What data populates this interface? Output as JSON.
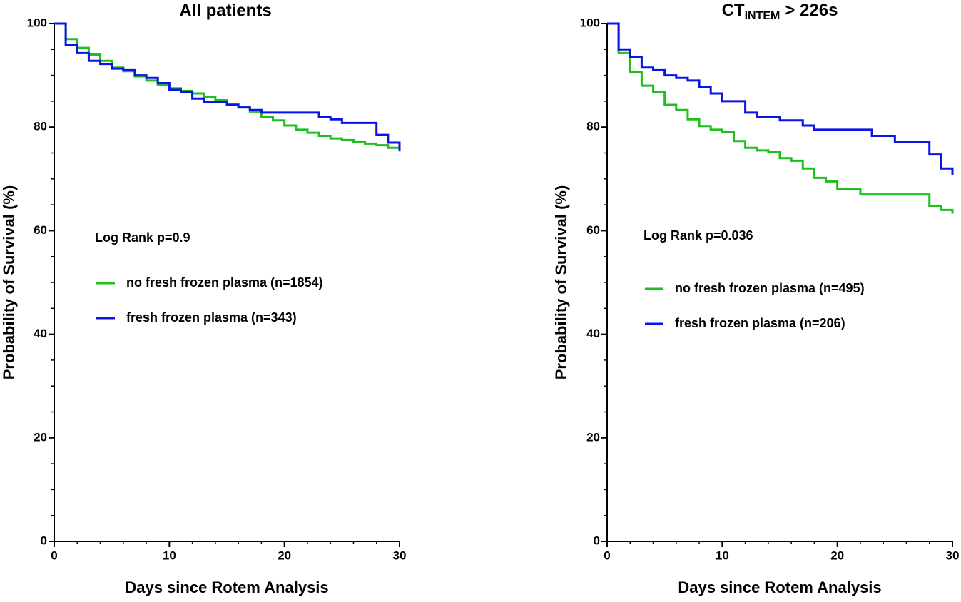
{
  "chart_data": [
    {
      "type": "step",
      "title": "All patients",
      "x_label": "Days since Rotem Analysis",
      "y_label": "Probability of Survival (%)",
      "annotation": "Log Rank p=0.9",
      "xlim": [
        0,
        30
      ],
      "xticks": [
        0,
        10,
        20,
        30
      ],
      "ylim": [
        0,
        100
      ],
      "yticks": [
        0,
        20,
        40,
        60,
        80,
        100
      ],
      "series": [
        {
          "name": "no fresh frozen plasma (n=1854)",
          "color": "#1fbf1f",
          "x": [
            0,
            1,
            2,
            3,
            4,
            5,
            6,
            7,
            8,
            9,
            10,
            11,
            12,
            13,
            14,
            15,
            16,
            17,
            18,
            19,
            20,
            21,
            22,
            23,
            24,
            25,
            26,
            27,
            28,
            29,
            30
          ],
          "values": [
            100,
            97,
            95.3,
            94,
            92.8,
            91.5,
            90.8,
            89.8,
            89,
            88.2,
            87.5,
            87,
            86.5,
            85.8,
            85.2,
            84.5,
            83.8,
            83,
            82,
            81.3,
            80.3,
            79.5,
            78.9,
            78.3,
            77.8,
            77.5,
            77.2,
            76.8,
            76.5,
            76,
            75.3
          ]
        },
        {
          "name": "fresh frozen plasma (n=343)",
          "color": "#0a14e6",
          "x": [
            0,
            1,
            2,
            3,
            4,
            5,
            6,
            7,
            8,
            9,
            10,
            11,
            12,
            13,
            15,
            16,
            17,
            18,
            23,
            24,
            25,
            28,
            29,
            30
          ],
          "values": [
            100,
            95.8,
            94.3,
            92.8,
            92.2,
            91.3,
            91,
            90,
            89.5,
            88.5,
            87.2,
            86.8,
            85.5,
            84.8,
            84.3,
            83.8,
            83.3,
            82.8,
            82,
            81.5,
            80.8,
            78.5,
            77,
            75.5
          ]
        }
      ]
    },
    {
      "type": "step",
      "title": "CT",
      "title_subscript": "INTEM",
      "title_suffix": "> 226s",
      "x_label": "Days since Rotem Analysis",
      "y_label": "Probability of Survival (%)",
      "annotation": "Log Rank p=0.036",
      "xlim": [
        0,
        30
      ],
      "xticks": [
        0,
        10,
        20,
        30
      ],
      "ylim": [
        0,
        100
      ],
      "yticks": [
        0,
        20,
        40,
        60,
        80,
        100
      ],
      "series": [
        {
          "name": "no fresh frozen plasma (n=495)",
          "color": "#1fbf1f",
          "x": [
            0,
            1,
            2,
            3,
            4,
            5,
            6,
            7,
            8,
            9,
            10,
            11,
            12,
            13,
            14,
            15,
            16,
            17,
            18,
            19,
            20,
            22,
            28,
            29,
            30
          ],
          "values": [
            100,
            94.3,
            90.7,
            88,
            86.7,
            84.3,
            83.3,
            81.5,
            80.2,
            79.5,
            79,
            77.3,
            76,
            75.5,
            75.2,
            74,
            73.5,
            72,
            70.2,
            69.5,
            68,
            67,
            64.8,
            64,
            63.3
          ]
        },
        {
          "name": "fresh frozen plasma (n=206)",
          "color": "#0a14e6",
          "x": [
            0,
            1,
            2,
            3,
            4,
            5,
            6,
            7,
            8,
            9,
            10,
            12,
            13,
            15,
            17,
            18,
            23,
            25,
            28,
            29,
            30
          ],
          "values": [
            100,
            95,
            93.5,
            91.5,
            91,
            90,
            89.5,
            89,
            87.8,
            86.5,
            85,
            82.8,
            82,
            81.3,
            80.3,
            79.5,
            78.3,
            77.2,
            74.7,
            72,
            70.7
          ]
        }
      ]
    }
  ]
}
